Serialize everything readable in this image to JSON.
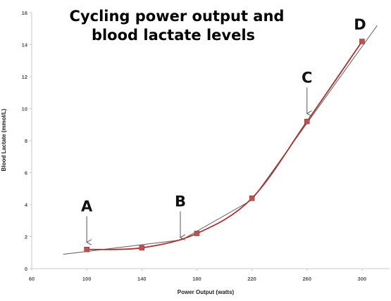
{
  "chart_data": {
    "type": "line",
    "title_lines": [
      "Cycling power output and",
      "blood lactate levels"
    ],
    "xlabel": "Power Output  (watts)",
    "ylabel": "Blood Lactate  (mmol/L)",
    "xlim": [
      60,
      320
    ],
    "ylim": [
      0,
      16
    ],
    "x_ticks": [
      60,
      100,
      140,
      180,
      220,
      260,
      300
    ],
    "y_ticks": [
      0,
      2,
      4,
      6,
      8,
      10,
      12,
      14,
      16
    ],
    "grid": false,
    "series": [
      {
        "x": [
          100,
          140,
          180,
          220,
          260,
          300
        ],
        "y": [
          1.2,
          1.3,
          2.2,
          4.4,
          9.2,
          14.2
        ],
        "color": "#a83232",
        "marker_color": "#c0504d"
      }
    ],
    "trend_segments": [
      {
        "x": [
          83,
          169
        ],
        "y": [
          0.9,
          1.8
        ]
      },
      {
        "x": [
          169,
          220
        ],
        "y": [
          1.8,
          4.3
        ]
      },
      {
        "x": [
          220,
          311
        ],
        "y": [
          4.3,
          15.2
        ]
      }
    ],
    "trend_color": "#6b6b6b",
    "annotations": [
      {
        "label": "A",
        "x": 100,
        "y": 1.65
      },
      {
        "label": "B",
        "x": 168,
        "y": 1.95
      },
      {
        "label": "C",
        "x": 260,
        "y": 9.7
      },
      {
        "label": "D",
        "x": 300,
        "y": 14.6
      }
    ]
  }
}
